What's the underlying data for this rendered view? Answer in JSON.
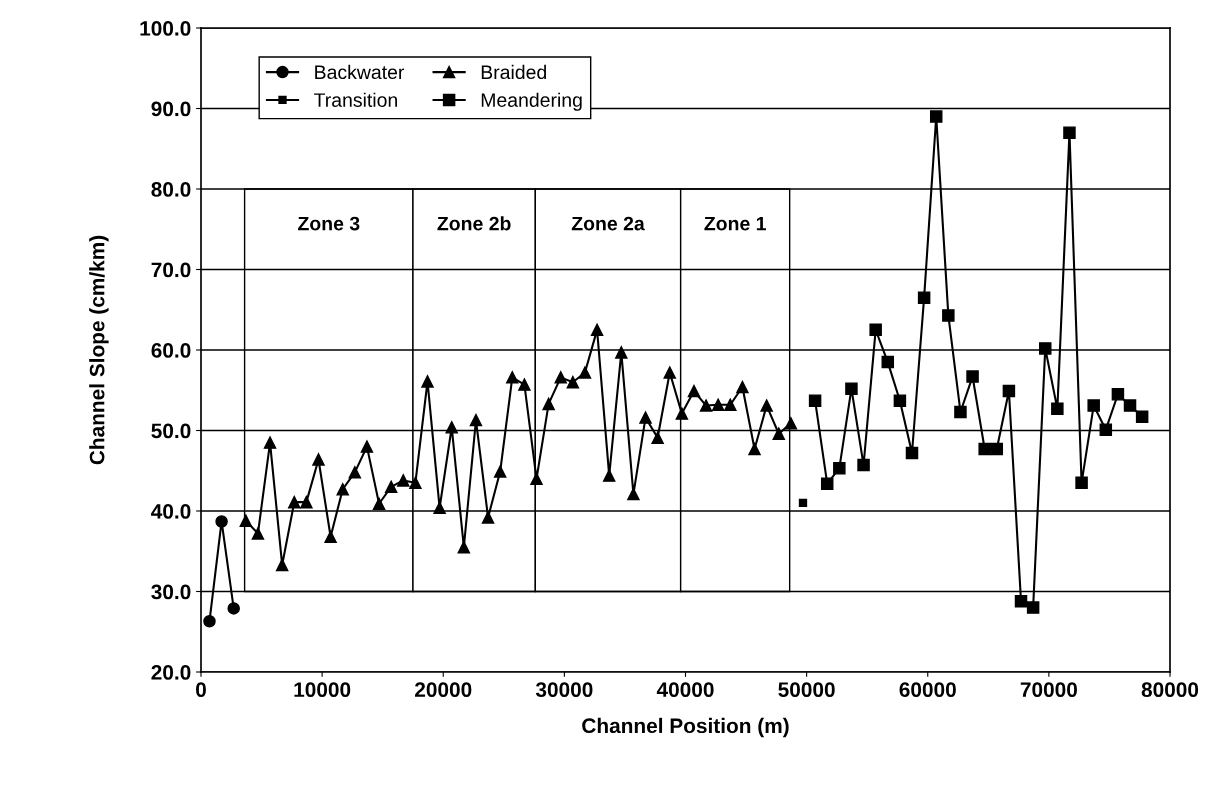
{
  "chart_data": {
    "type": "line",
    "xlabel": "Channel Position (m)",
    "ylabel": "Channel Slope (cm/km)",
    "xlim": [
      0,
      80000
    ],
    "xticks": [
      0,
      10000,
      20000,
      30000,
      40000,
      50000,
      60000,
      70000,
      80000
    ],
    "ylim": [
      20,
      100
    ],
    "yticks": [
      {
        "value": 20,
        "label": "20.0"
      },
      {
        "value": 30,
        "label": "30.0"
      },
      {
        "value": 40,
        "label": "40.0"
      },
      {
        "value": 50,
        "label": "50.0"
      },
      {
        "value": 60,
        "label": "60.0"
      },
      {
        "value": 70,
        "label": "70.0"
      },
      {
        "value": 80,
        "label": "80.0"
      },
      {
        "value": 90,
        "label": "90.0"
      },
      {
        "value": 100,
        "label": "100.0"
      }
    ],
    "grid": "y",
    "legend": "top left",
    "line_style": "solid",
    "bands": [
      {
        "axis": "x",
        "from": 3600,
        "to": 17500,
        "label": "Zone 3",
        "color": "#ffffff"
      },
      {
        "axis": "x",
        "from": 17500,
        "to": 27600,
        "label": "Zone 2b",
        "color": "#ffffff"
      },
      {
        "axis": "x",
        "from": 27600,
        "to": 39600,
        "label": "Zone 2a",
        "color": "#ffffff"
      },
      {
        "axis": "x",
        "from": 39600,
        "to": 48600,
        "label": "Zone 1",
        "color": "#ffffff"
      }
    ],
    "series": [
      {
        "name": "Backwater",
        "color": "#000000",
        "marker": "circle",
        "x": [
          700,
          1700,
          2700
        ],
        "values": [
          26.3,
          38.7,
          27.9
        ]
      },
      {
        "name": "Braided",
        "color": "#000000",
        "marker": "triangle",
        "x": [
          3700,
          4700,
          5700,
          6700,
          7700,
          8700,
          9700,
          10700,
          11700,
          12700,
          13700,
          14700,
          15700,
          16700,
          17700,
          18700,
          19700,
          20700,
          21700,
          22700,
          23700,
          24700,
          25700,
          26700,
          27700,
          28700,
          29700,
          30700,
          31700,
          32700,
          33700,
          34700,
          35700,
          36700,
          37700,
          38700,
          39700,
          40700,
          41700,
          42700,
          43700,
          44700,
          45700,
          46700,
          47700,
          48700
        ],
        "values": [
          38.8,
          37.2,
          48.5,
          33.3,
          41.1,
          41.1,
          46.4,
          36.8,
          42.7,
          44.8,
          48.0,
          40.9,
          43.0,
          43.8,
          43.5,
          56.1,
          40.4,
          50.4,
          35.5,
          51.3,
          39.2,
          44.9,
          56.6,
          55.7,
          44.0,
          53.3,
          56.6,
          56.0,
          57.2,
          62.5,
          44.4,
          59.7,
          42.1,
          51.6,
          49.1,
          57.2,
          52.1,
          54.9,
          53.1,
          53.2,
          53.2,
          55.4,
          47.7,
          53.1,
          49.6,
          50.9
        ]
      },
      {
        "name": "Transition",
        "color": "#000000",
        "marker": "square",
        "x": [
          49700
        ],
        "values": [
          41.0
        ]
      },
      {
        "name": "Meandering",
        "color": "#000000",
        "marker": "square",
        "x": [
          50700,
          51700,
          52700,
          53700,
          54700,
          55700,
          56700,
          57700,
          58700,
          59700,
          60700,
          61700,
          62700,
          63700,
          64700,
          65700,
          66700,
          67700,
          68700,
          69700,
          70700,
          71700,
          72700,
          73700,
          74700,
          75700,
          76700,
          77700
        ],
        "values": [
          53.7,
          43.4,
          45.3,
          55.2,
          45.7,
          62.5,
          58.5,
          53.7,
          47.2,
          66.5,
          89.0,
          64.3,
          52.3,
          56.7,
          47.7,
          47.7,
          54.9,
          28.8,
          28.0,
          60.2,
          52.7,
          87.0,
          43.5,
          53.1,
          50.1,
          54.5,
          53.1,
          51.7
        ]
      }
    ]
  }
}
